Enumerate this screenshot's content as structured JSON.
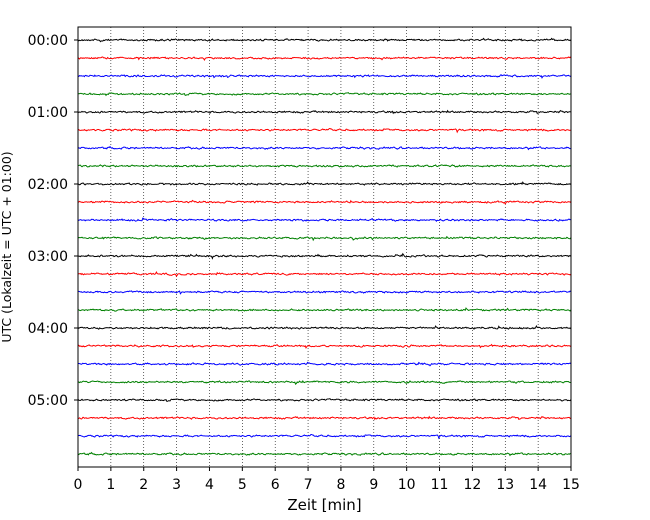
{
  "chart_data": {
    "type": "line",
    "title": "",
    "xlabel": "Zeit  [min]",
    "ylabel": "UTC (Lokalzeit = UTC + 01:00)",
    "xlim": [
      0,
      15
    ],
    "x_ticks": [
      "0",
      "1",
      "2",
      "3",
      "4",
      "5",
      "6",
      "7",
      "8",
      "9",
      "10",
      "11",
      "12",
      "13",
      "14",
      "15"
    ],
    "x_grid": "dotted vertical lines at each minute",
    "trace_interval_minutes": 15,
    "y_tick_labels": [
      "00:00",
      "01:00",
      "02:00",
      "03:00",
      "04:00",
      "05:00"
    ],
    "traces": [
      {
        "start": "00:00",
        "color": "#000000"
      },
      {
        "start": "00:15",
        "color": "#ff0000"
      },
      {
        "start": "00:30",
        "color": "#0000ff"
      },
      {
        "start": "00:45",
        "color": "#008000"
      },
      {
        "start": "01:00",
        "color": "#000000"
      },
      {
        "start": "01:15",
        "color": "#ff0000"
      },
      {
        "start": "01:30",
        "color": "#0000ff"
      },
      {
        "start": "01:45",
        "color": "#008000"
      },
      {
        "start": "02:00",
        "color": "#000000"
      },
      {
        "start": "02:15",
        "color": "#ff0000"
      },
      {
        "start": "02:30",
        "color": "#0000ff"
      },
      {
        "start": "02:45",
        "color": "#008000"
      },
      {
        "start": "03:00",
        "color": "#000000"
      },
      {
        "start": "03:15",
        "color": "#ff0000"
      },
      {
        "start": "03:30",
        "color": "#0000ff"
      },
      {
        "start": "03:45",
        "color": "#008000"
      },
      {
        "start": "04:00",
        "color": "#000000"
      },
      {
        "start": "04:15",
        "color": "#ff0000"
      },
      {
        "start": "04:30",
        "color": "#0000ff"
      },
      {
        "start": "04:45",
        "color": "#008000"
      },
      {
        "start": "05:00",
        "color": "#000000"
      },
      {
        "start": "05:15",
        "color": "#ff0000"
      },
      {
        "start": "05:30",
        "color": "#0000ff"
      },
      {
        "start": "05:45",
        "color": "#008000"
      }
    ]
  }
}
